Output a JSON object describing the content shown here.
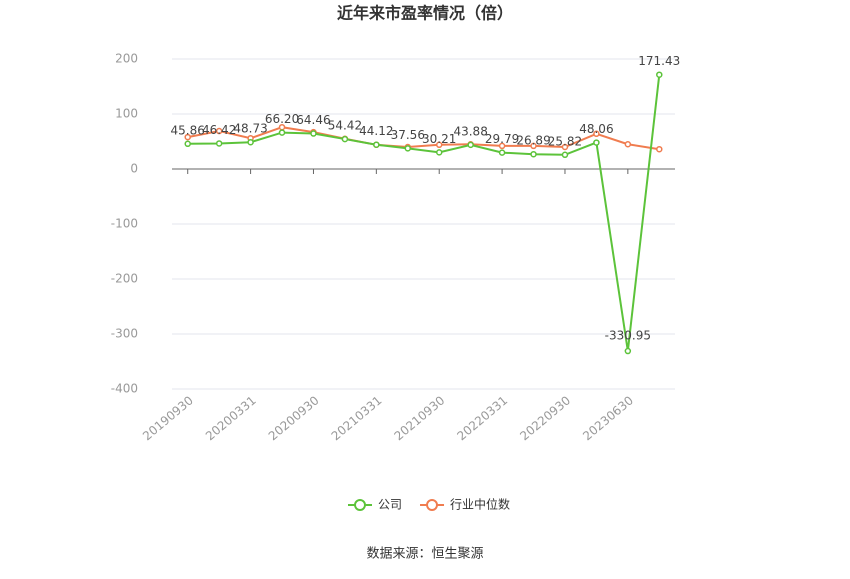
{
  "chart_data": {
    "type": "line",
    "title": "近年来市盈率情况（倍）",
    "categories": [
      "20190930",
      null,
      "20200331",
      null,
      "20200930",
      null,
      "20210331",
      null,
      "20210930",
      null,
      "20220331",
      null,
      "20220930",
      null,
      "20230630",
      null
    ],
    "series": [
      {
        "name": "公司",
        "color": "#5cc33a",
        "values": [
          45.86,
          46.42,
          48.73,
          66.2,
          64.46,
          54.42,
          44.12,
          37.56,
          30.21,
          43.88,
          29.79,
          26.89,
          25.82,
          48.06,
          -330.95,
          171.43
        ],
        "value_labels": [
          "45.86",
          "46.42",
          "48.73",
          "66.20",
          "64.46",
          "54.42",
          "44.12",
          "37.56",
          "30.21",
          "43.88",
          "29.79",
          "26.89",
          "25.82",
          "48.06",
          "-330.95",
          "171.43"
        ]
      },
      {
        "name": "行业中位数",
        "color": "#f07c4f",
        "values": [
          58,
          69,
          56,
          76,
          67,
          55,
          44,
          40,
          44,
          45,
          42,
          42,
          40,
          64,
          45,
          36
        ]
      }
    ],
    "ylim": [
      -400,
      200
    ],
    "yticks": [
      -400,
      -300,
      -200,
      -100,
      0,
      100,
      200
    ],
    "grid": true,
    "source": "数据来源：恒生聚源"
  }
}
